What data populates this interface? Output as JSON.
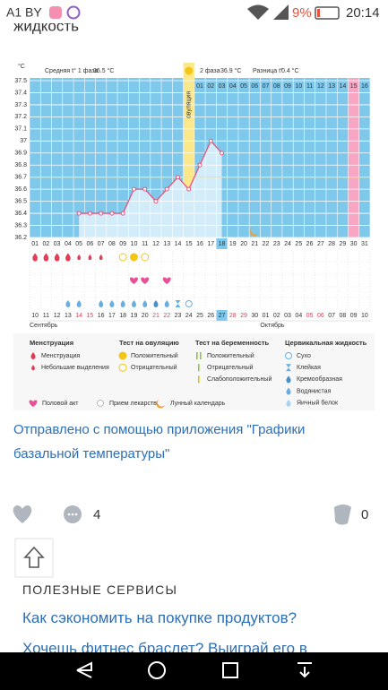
{
  "status_bar": {
    "carrier": "A1 BY",
    "battery": "9%",
    "time": "20:14"
  },
  "article": {
    "heading_fragment": "жидкость",
    "link": "Отправлено с помощью приложения \"Графики базальной температуры\""
  },
  "chart_data": {
    "type": "line",
    "y_unit": "°C",
    "phase1_label": "Средняя t° 1 фаза",
    "phase1_value": "36.5 °C",
    "phase2_label": "2 фаза",
    "phase2_value": "36.9 °C",
    "diff_label": "Разница t°",
    "diff_value": "0.4 °C",
    "ovulation_label": "овуляция",
    "ovulation_index": 14,
    "pink_index": 29,
    "today_index": 17,
    "moon_index": 20,
    "color": "#e4557d",
    "coverline": 36.7,
    "ylim": [
      36.2,
      37.5
    ],
    "yticks": [
      36.2,
      36.3,
      36.4,
      36.5,
      36.6,
      36.7,
      36.8,
      36.9,
      37,
      37.1,
      37.2,
      37.3,
      37.4,
      37.5
    ],
    "grid": true,
    "phase2_days": [
      "01",
      "02",
      "03",
      "04",
      "05",
      "06",
      "07",
      "08",
      "09",
      "10",
      "11",
      "12",
      "13",
      "14",
      "15",
      "16"
    ],
    "categories": [
      "01",
      "02",
      "03",
      "04",
      "05",
      "06",
      "07",
      "08",
      "09",
      "10",
      "11",
      "12",
      "13",
      "14",
      "15",
      "16",
      "17",
      "18",
      "19",
      "20",
      "21",
      "22",
      "23",
      "24",
      "25",
      "26",
      "27",
      "28",
      "29",
      "30",
      "31"
    ],
    "values": [
      null,
      null,
      null,
      null,
      36.4,
      36.4,
      36.4,
      36.4,
      36.4,
      36.6,
      36.6,
      36.5,
      36.6,
      36.7,
      36.6,
      36.8,
      37.0,
      36.9,
      null,
      null,
      null,
      null,
      null,
      null,
      null,
      null,
      null,
      null,
      null,
      null,
      null
    ],
    "dates": [
      "10",
      "11",
      "12",
      "13",
      "14",
      "15",
      "16",
      "17",
      "18",
      "19",
      "20",
      "21",
      "22",
      "23",
      "24",
      "25",
      "26",
      "27",
      "28",
      "29",
      "30",
      "01",
      "02",
      "03",
      "04",
      "05",
      "06",
      "07",
      "08",
      "09",
      "10"
    ],
    "weekend": [
      4,
      5,
      11,
      12,
      18,
      19,
      25,
      26
    ],
    "months": [
      "Сентябрь",
      "Октябрь"
    ],
    "symbols": {
      "menstruation": [
        "heavy",
        "heavy",
        "heavy",
        "heavy",
        "light",
        "light",
        "light",
        null,
        null,
        null,
        null,
        null,
        null,
        null,
        null,
        null,
        null,
        null,
        null,
        null,
        null,
        null,
        null,
        null,
        null,
        null,
        null,
        null,
        null,
        null,
        null
      ],
      "ovulation_test": [
        null,
        null,
        null,
        null,
        null,
        null,
        null,
        null,
        "negative",
        "positive",
        "negative",
        null,
        null,
        null,
        null,
        null,
        null,
        null,
        null,
        null,
        null,
        null,
        null,
        null,
        null,
        null,
        null,
        null,
        null,
        null,
        null
      ],
      "intercourse": [
        null,
        null,
        null,
        null,
        null,
        null,
        null,
        null,
        null,
        true,
        true,
        null,
        true,
        null,
        null,
        null,
        null,
        null,
        null,
        null,
        null,
        null,
        null,
        null,
        null,
        null,
        null,
        null,
        null,
        null,
        null
      ],
      "cervical": [
        null,
        null,
        null,
        "watery",
        "watery",
        null,
        "watery",
        "watery",
        "watery",
        "watery",
        "watery",
        "creamy",
        "watery",
        "sticky",
        "dry",
        null,
        null,
        null,
        null,
        null,
        null,
        null,
        null,
        null,
        null,
        null,
        null,
        null,
        null,
        null,
        null
      ]
    }
  },
  "legend": {
    "groups": [
      {
        "title": "Менструация",
        "items": [
          "Менструация",
          "Небольшие выделения"
        ]
      },
      {
        "title": "Тест на овуляцию",
        "items": [
          "Положительный",
          "Отрицательный"
        ]
      },
      {
        "title": "Тест на беременность",
        "items": [
          "Положительный",
          "Отрицательный",
          "Слабоположительный"
        ]
      },
      {
        "title": "Цервикальная жидкость",
        "items": [
          "Сухо",
          "Клейкая",
          "Кремообразная",
          "Водянистая",
          "Яичный белок"
        ]
      }
    ],
    "extras": [
      "Половой акт",
      "Прием лекарств",
      "Лунный календарь"
    ]
  },
  "actions": {
    "comments": 4,
    "shares": 0
  },
  "services": {
    "title": "ПОЛЕЗНЫЕ СЕРВИСЫ",
    "items": [
      "Как сэкономить на покупке продуктов?",
      "Хочешь фитнес браслет? Выиграй его в"
    ]
  }
}
